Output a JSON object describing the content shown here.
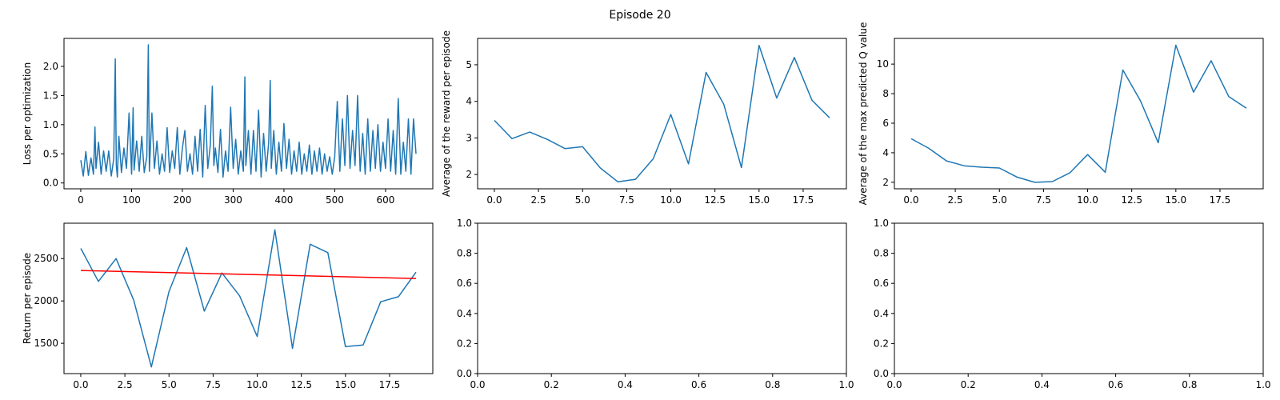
{
  "suptitle": "Episode 20",
  "chart_data": [
    {
      "type": "line",
      "panel": "top-left",
      "title": "",
      "xlabel": "",
      "ylabel": "Loss per optimization",
      "xlim": [
        -33,
        693
      ],
      "ylim": [
        -0.1,
        2.48
      ],
      "xticks": [
        0,
        100,
        200,
        300,
        400,
        500,
        600
      ],
      "xtick_labels": [
        "0",
        "100",
        "200",
        "300",
        "400",
        "500",
        "600"
      ],
      "yticks": [
        0.0,
        0.5,
        1.0,
        1.5,
        2.0
      ],
      "ytick_labels": [
        "0.0",
        "0.5",
        "1.0",
        "1.5",
        "2.0"
      ],
      "grid": false,
      "series": [
        {
          "color": "#1f77b4",
          "x": [
            0,
            5,
            10,
            15,
            20,
            25,
            28,
            30,
            35,
            40,
            45,
            50,
            55,
            60,
            65,
            68,
            70,
            72,
            75,
            80,
            85,
            90,
            95,
            100,
            103,
            105,
            110,
            115,
            120,
            125,
            130,
            133,
            135,
            140,
            145,
            150,
            155,
            160,
            165,
            170,
            175,
            180,
            185,
            190,
            195,
            200,
            205,
            210,
            215,
            220,
            225,
            230,
            235,
            240,
            245,
            250,
            255,
            259,
            262,
            265,
            270,
            275,
            280,
            285,
            290,
            295,
            300,
            305,
            310,
            315,
            320,
            323,
            325,
            330,
            335,
            340,
            345,
            350,
            355,
            360,
            365,
            370,
            373,
            375,
            380,
            385,
            390,
            395,
            400,
            405,
            410,
            415,
            420,
            425,
            430,
            435,
            440,
            445,
            450,
            455,
            460,
            465,
            470,
            475,
            480,
            485,
            490,
            495,
            500,
            505,
            510,
            515,
            520,
            525,
            530,
            535,
            540,
            545,
            550,
            555,
            560,
            565,
            570,
            575,
            580,
            585,
            590,
            595,
            600,
            605,
            610,
            615,
            620,
            625,
            630,
            635,
            640,
            645,
            650,
            655,
            660
          ],
          "y": [
            0.39,
            0.12,
            0.54,
            0.13,
            0.43,
            0.15,
            0.96,
            0.25,
            0.7,
            0.15,
            0.55,
            0.2,
            0.55,
            0.12,
            0.42,
            2.13,
            0.3,
            0.1,
            0.8,
            0.18,
            0.6,
            0.25,
            1.2,
            0.15,
            1.29,
            0.22,
            0.72,
            0.2,
            0.8,
            0.18,
            0.45,
            2.37,
            0.2,
            1.2,
            0.25,
            0.72,
            0.15,
            0.5,
            0.2,
            0.95,
            0.18,
            0.55,
            0.25,
            0.95,
            0.15,
            0.6,
            0.9,
            0.2,
            0.5,
            0.15,
            0.8,
            0.2,
            0.92,
            0.1,
            1.33,
            0.25,
            0.65,
            1.66,
            0.3,
            0.6,
            0.18,
            0.92,
            0.1,
            0.55,
            0.2,
            1.3,
            0.25,
            0.75,
            0.15,
            0.55,
            0.2,
            1.82,
            0.3,
            0.9,
            0.15,
            0.9,
            0.2,
            1.25,
            0.1,
            0.85,
            0.2,
            0.7,
            1.76,
            0.25,
            0.9,
            0.15,
            0.7,
            0.2,
            1.02,
            0.25,
            0.75,
            0.15,
            0.55,
            0.2,
            0.7,
            0.15,
            0.5,
            0.2,
            0.65,
            0.15,
            0.55,
            0.2,
            0.6,
            0.15,
            0.5,
            0.2,
            0.45,
            0.15,
            0.45,
            1.4,
            0.2,
            1.1,
            0.3,
            1.5,
            0.25,
            0.9,
            0.3,
            1.5,
            0.2,
            0.85,
            0.15,
            1.1,
            0.2,
            0.9,
            0.25,
            1.0,
            0.2,
            0.7,
            0.25,
            1.1,
            0.2,
            0.9,
            0.15,
            1.45,
            0.15,
            0.7,
            0.2,
            1.1,
            0.15,
            1.1,
            0.5
          ]
        }
      ]
    },
    {
      "type": "line",
      "panel": "top-middle",
      "title": "",
      "xlabel": "",
      "ylabel": "Average of the reward per episode",
      "xlim": [
        -0.95,
        19.95
      ],
      "ylim": [
        1.61,
        5.72
      ],
      "xticks": [
        0.0,
        2.5,
        5.0,
        7.5,
        10.0,
        12.5,
        15.0,
        17.5
      ],
      "xtick_labels": [
        "0.0",
        "2.5",
        "5.0",
        "7.5",
        "10.0",
        "12.5",
        "15.0",
        "17.5"
      ],
      "yticks": [
        2,
        3,
        4,
        5
      ],
      "ytick_labels": [
        "2",
        "3",
        "4",
        "5"
      ],
      "grid": false,
      "series": [
        {
          "color": "#1f77b4",
          "x": [
            0,
            1,
            2,
            3,
            4,
            5,
            6,
            7,
            8,
            9,
            10,
            11,
            12,
            13,
            14,
            15,
            16,
            17,
            18,
            19
          ],
          "y": [
            3.48,
            2.98,
            3.16,
            2.96,
            2.71,
            2.76,
            2.18,
            1.8,
            1.87,
            2.43,
            3.64,
            2.29,
            4.79,
            3.92,
            2.19,
            5.53,
            4.09,
            5.2,
            4.03,
            3.55
          ]
        }
      ]
    },
    {
      "type": "line",
      "panel": "top-right",
      "title": "",
      "xlabel": "",
      "ylabel": "Average of the max predicted Q value",
      "xlim": [
        -0.95,
        19.95
      ],
      "ylim": [
        1.56,
        11.74
      ],
      "xticks": [
        0.0,
        2.5,
        5.0,
        7.5,
        10.0,
        12.5,
        15.0,
        17.5
      ],
      "xtick_labels": [
        "0.0",
        "2.5",
        "5.0",
        "7.5",
        "10.0",
        "12.5",
        "15.0",
        "17.5"
      ],
      "yticks": [
        2,
        4,
        6,
        8,
        10
      ],
      "ytick_labels": [
        "2",
        "4",
        "6",
        "8",
        "10"
      ],
      "grid": false,
      "series": [
        {
          "color": "#1f77b4",
          "x": [
            0,
            1,
            2,
            3,
            4,
            5,
            6,
            7,
            8,
            9,
            10,
            11,
            12,
            13,
            14,
            15,
            16,
            17,
            18,
            19
          ],
          "y": [
            4.95,
            4.3,
            3.45,
            3.12,
            3.02,
            2.97,
            2.35,
            2.0,
            2.05,
            2.65,
            3.88,
            2.68,
            9.6,
            7.5,
            4.68,
            11.28,
            8.1,
            10.23,
            7.8,
            7.02
          ]
        }
      ]
    },
    {
      "type": "line",
      "panel": "bottom-left",
      "title": "",
      "xlabel": "",
      "ylabel": "Return per episode",
      "xlim": [
        -0.95,
        19.95
      ],
      "ylim": [
        1142,
        2918
      ],
      "xticks": [
        0.0,
        2.5,
        5.0,
        7.5,
        10.0,
        12.5,
        15.0,
        17.5
      ],
      "xtick_labels": [
        "0.0",
        "2.5",
        "5.0",
        "7.5",
        "10.0",
        "12.5",
        "15.0",
        "17.5"
      ],
      "yticks": [
        1500,
        2000,
        2500
      ],
      "ytick_labels": [
        "1500",
        "2000",
        "2500"
      ],
      "grid": false,
      "series": [
        {
          "color": "#1f77b4",
          "x": [
            0,
            1,
            2,
            3,
            4,
            5,
            6,
            7,
            8,
            9,
            10,
            11,
            12,
            13,
            14,
            15,
            16,
            17,
            18,
            19
          ],
          "y": [
            2620,
            2230,
            2500,
            2010,
            1220,
            2110,
            2630,
            1880,
            2330,
            2060,
            1580,
            2840,
            1440,
            2670,
            2570,
            1460,
            1480,
            1990,
            2050,
            2340
          ]
        },
        {
          "color": "#ff0000",
          "x": [
            0,
            19
          ],
          "y": [
            2360,
            2265
          ]
        }
      ]
    },
    {
      "type": "line",
      "panel": "bottom-middle",
      "title": "",
      "xlabel": "",
      "ylabel": "",
      "xlim": [
        0,
        1
      ],
      "ylim": [
        0,
        1
      ],
      "xticks": [
        0.0,
        0.2,
        0.4,
        0.6,
        0.8,
        1.0
      ],
      "xtick_labels": [
        "0.0",
        "0.2",
        "0.4",
        "0.6",
        "0.8",
        "1.0"
      ],
      "yticks": [
        0.0,
        0.2,
        0.4,
        0.6,
        0.8,
        1.0
      ],
      "ytick_labels": [
        "0.0",
        "0.2",
        "0.4",
        "0.6",
        "0.8",
        "1.0"
      ],
      "grid": false,
      "series": []
    },
    {
      "type": "line",
      "panel": "bottom-right",
      "title": "",
      "xlabel": "",
      "ylabel": "",
      "xlim": [
        0,
        1
      ],
      "ylim": [
        0,
        1
      ],
      "xticks": [
        0.0,
        0.2,
        0.4,
        0.6,
        0.8,
        1.0
      ],
      "xtick_labels": [
        "0.0",
        "0.2",
        "0.4",
        "0.6",
        "0.8",
        "1.0"
      ],
      "yticks": [
        0.0,
        0.2,
        0.4,
        0.6,
        0.8,
        1.0
      ],
      "ytick_labels": [
        "0.0",
        "0.2",
        "0.4",
        "0.6",
        "0.8",
        "1.0"
      ],
      "grid": false,
      "series": []
    }
  ]
}
